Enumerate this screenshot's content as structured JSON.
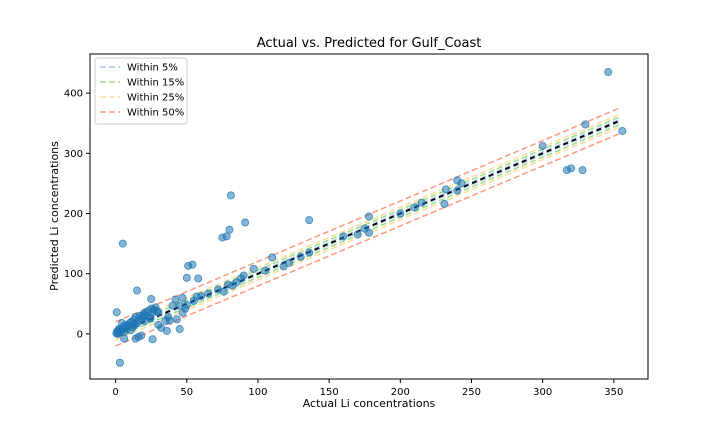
{
  "chart_data": {
    "type": "scatter",
    "title": "Actual vs. Predicted for Gulf_Coast",
    "xlabel": "Actual Li concentrations",
    "ylabel": "Predicted Li concentrations",
    "xlim": [
      -18,
      374
    ],
    "ylim": [
      -75,
      465
    ],
    "xticks": [
      0,
      50,
      100,
      150,
      200,
      250,
      300,
      350
    ],
    "yticks": [
      0,
      100,
      200,
      300,
      400
    ],
    "grid": false,
    "legend_position": "top-left",
    "reference_line": {
      "style": "black dashed",
      "from": 0,
      "to": 355
    },
    "bands": [
      {
        "name": "Within 5%",
        "pct": 0.05,
        "color": "#aec7e8"
      },
      {
        "name": "Within 15%",
        "pct": 0.15,
        "color": "#98df8a"
      },
      {
        "name": "Within 25%",
        "pct": 0.25,
        "color": "#ffdd99"
      },
      {
        "name": "Within 50%",
        "pct": 0.5,
        "color": "#ff9980"
      }
    ],
    "points": {
      "color": "#1f77b4",
      "x": [
        0.5,
        1,
        1.5,
        2,
        2.5,
        3,
        3.5,
        4,
        5,
        5.5,
        6,
        7,
        7.5,
        8,
        9,
        10,
        10.5,
        11,
        12,
        13,
        13.5,
        14,
        15,
        16,
        17,
        18,
        19,
        20,
        20.5,
        21,
        22,
        23,
        24,
        25,
        26,
        27,
        28,
        29,
        30,
        0.8,
        2.2,
        4.5,
        12.5,
        19,
        24.5,
        38,
        45,
        40,
        42,
        47,
        50,
        55,
        57,
        60,
        65,
        72,
        76,
        79,
        82,
        85,
        88,
        90,
        105,
        118,
        122,
        130,
        136,
        160,
        170,
        175,
        178,
        200,
        210,
        215,
        232,
        240,
        330,
        317,
        346,
        356,
        320,
        240,
        300,
        5,
        15,
        25,
        45,
        50,
        51,
        54,
        58,
        75,
        78,
        80,
        81,
        91,
        97,
        110,
        136,
        178,
        231,
        243,
        328,
        18,
        30,
        35,
        37,
        43,
        47,
        49,
        3,
        6,
        14,
        16,
        26,
        32,
        36
      ],
      "y": [
        1,
        4,
        0,
        3,
        6,
        2,
        8,
        5,
        7,
        12,
        3,
        10,
        15,
        9,
        14,
        18,
        6,
        20,
        11,
        24,
        16,
        28,
        17,
        22,
        30,
        25,
        27,
        33,
        21,
        36,
        30,
        38,
        26,
        42,
        35,
        40,
        44,
        38,
        36,
        36,
        8,
        18,
        14,
        30,
        26,
        22,
        47,
        47,
        57,
        60,
        48,
        55,
        62,
        63,
        67,
        74,
        70,
        82,
        80,
        86,
        92,
        97,
        105,
        112,
        118,
        128,
        135,
        162,
        165,
        175,
        168,
        200,
        210,
        218,
        240,
        238,
        348,
        272,
        435,
        337,
        275,
        255,
        312,
        150,
        72,
        58,
        8,
        93,
        113,
        115,
        92,
        160,
        162,
        173,
        230,
        185,
        108,
        127,
        189,
        195,
        216,
        250,
        272,
        -3,
        15,
        22,
        28,
        24,
        35,
        42,
        -48,
        -8,
        -8,
        -5,
        -9,
        10,
        5
      ]
    }
  }
}
